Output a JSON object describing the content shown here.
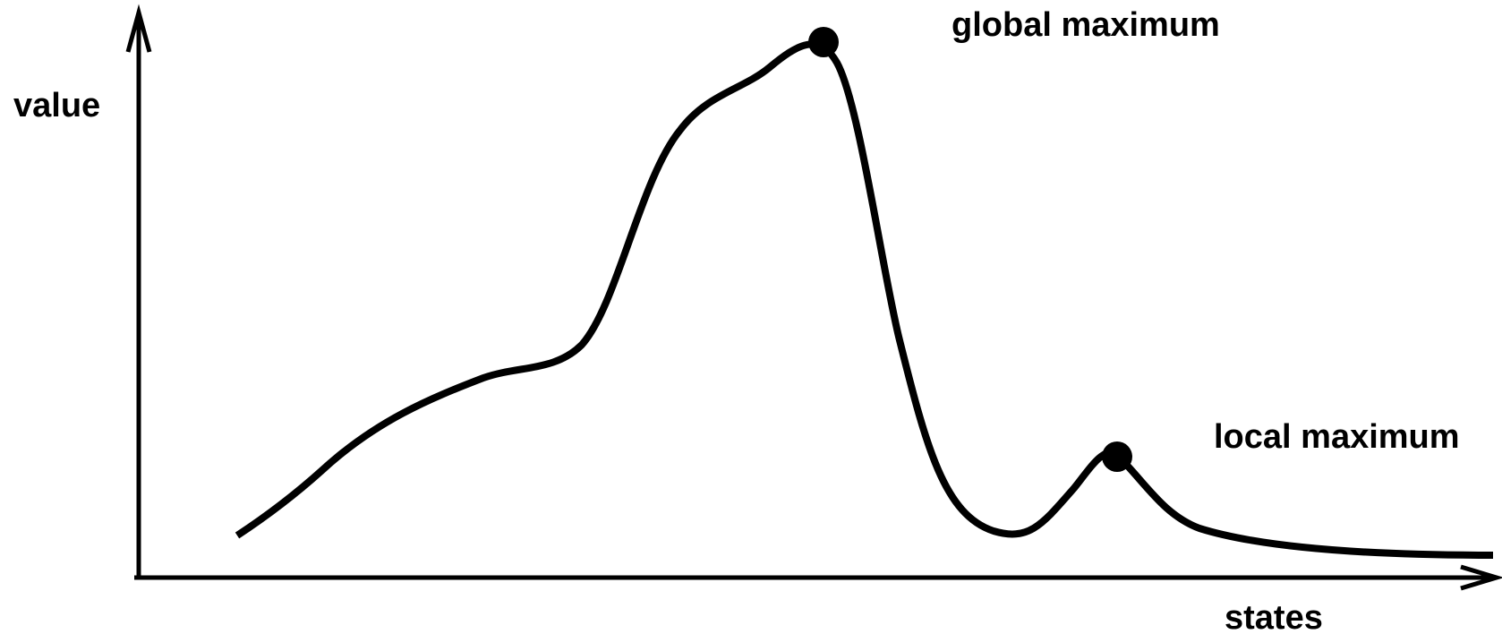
{
  "diagram": {
    "y_axis_label": "value",
    "x_axis_label": "states",
    "annotations": {
      "global": "global maximum",
      "local": "local maximum"
    },
    "colors": {
      "stroke": "#000000",
      "background": "#ffffff"
    }
  }
}
